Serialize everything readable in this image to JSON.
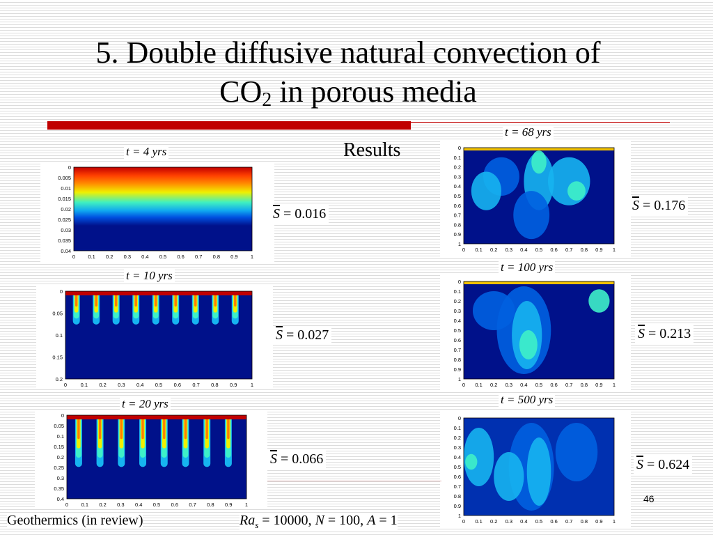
{
  "slide": {
    "title_main": "5. Double diffusive natural convection of",
    "title_co": "CO",
    "title_sub": "2",
    "title_rest": " in porous media",
    "results_label": "Results",
    "page_number": "46",
    "footer_ref": "Geothermics (in review)",
    "footer_params": {
      "ra": "Ra",
      "ra_sub": "s",
      "ra_val": " = 10000, ",
      "n": "N",
      "n_val": " = 100, ",
      "a": "A",
      "a_val": " = 1"
    }
  },
  "plots": [
    {
      "caption": "t = 4 yrs",
      "s_label": "S",
      "s_value": "= 0.016",
      "y_ticks": [
        "0",
        "0.005",
        "0.01",
        "0.015",
        "0.02",
        "0.025",
        "0.03",
        "0.035",
        "0.04"
      ],
      "x_ticks": [
        "0",
        "0.1",
        "0.2",
        "0.3",
        "0.4",
        "0.5",
        "0.6",
        "0.7",
        "0.8",
        "0.9",
        "1"
      ]
    },
    {
      "caption": "t = 10 yrs",
      "s_label": "S",
      "s_value": "= 0.027",
      "y_ticks": [
        "0",
        "0.05",
        "0.1",
        "0.15",
        "0.2"
      ],
      "x_ticks": [
        "0",
        "0.1",
        "0.2",
        "0.3",
        "0.4",
        "0.5",
        "0.6",
        "0.7",
        "0.8",
        "0.9",
        "1"
      ]
    },
    {
      "caption": "t = 20 yrs",
      "s_label": "S",
      "s_value": "= 0.066",
      "y_ticks": [
        "0",
        "0.05",
        "0.1",
        "0.15",
        "0.2",
        "0.25",
        "0.3",
        "0.35",
        "0.4"
      ],
      "x_ticks": [
        "0",
        "0.1",
        "0.2",
        "0.3",
        "0.4",
        "0.5",
        "0.6",
        "0.7",
        "0.8",
        "0.9",
        "1"
      ]
    },
    {
      "caption": "t = 68 yrs",
      "s_label": "S",
      "s_value": "= 0.176",
      "y_ticks": [
        "0",
        "0.1",
        "0.2",
        "0.3",
        "0.4",
        "0.5",
        "0.6",
        "0.7",
        "0.8",
        "0.9",
        "1"
      ],
      "x_ticks": [
        "0",
        "0.1",
        "0.2",
        "0.3",
        "0.4",
        "0.5",
        "0.6",
        "0.7",
        "0.8",
        "0.9",
        "1"
      ]
    },
    {
      "caption": "t = 100 yrs",
      "s_label": "S",
      "s_value": "= 0.213",
      "y_ticks": [
        "0",
        "0.1",
        "0.2",
        "0.3",
        "0.4",
        "0.5",
        "0.6",
        "0.7",
        "0.8",
        "0.9",
        "1"
      ],
      "x_ticks": [
        "0",
        "0.1",
        "0.2",
        "0.3",
        "0.4",
        "0.5",
        "0.6",
        "0.7",
        "0.8",
        "0.9",
        "1"
      ]
    },
    {
      "caption": "t = 500 yrs",
      "s_label": "S",
      "s_value": "= 0.624",
      "y_ticks": [
        "0",
        "0.1",
        "0.2",
        "0.3",
        "0.4",
        "0.5",
        "0.6",
        "0.7",
        "0.8",
        "0.9",
        "1"
      ],
      "x_ticks": [
        "0",
        "0.1",
        "0.2",
        "0.3",
        "0.4",
        "0.5",
        "0.6",
        "0.7",
        "0.8",
        "0.9",
        "1"
      ]
    }
  ],
  "colors": {
    "accent_bar": "#c00000",
    "field_dark": "#00118a",
    "field_mid": "#0046d8",
    "field_light": "#16b4f0",
    "field_cyan": "#3ef0c8",
    "field_yellow": "#f0f000",
    "field_orange": "#ff8000",
    "field_red": "#c00000"
  }
}
